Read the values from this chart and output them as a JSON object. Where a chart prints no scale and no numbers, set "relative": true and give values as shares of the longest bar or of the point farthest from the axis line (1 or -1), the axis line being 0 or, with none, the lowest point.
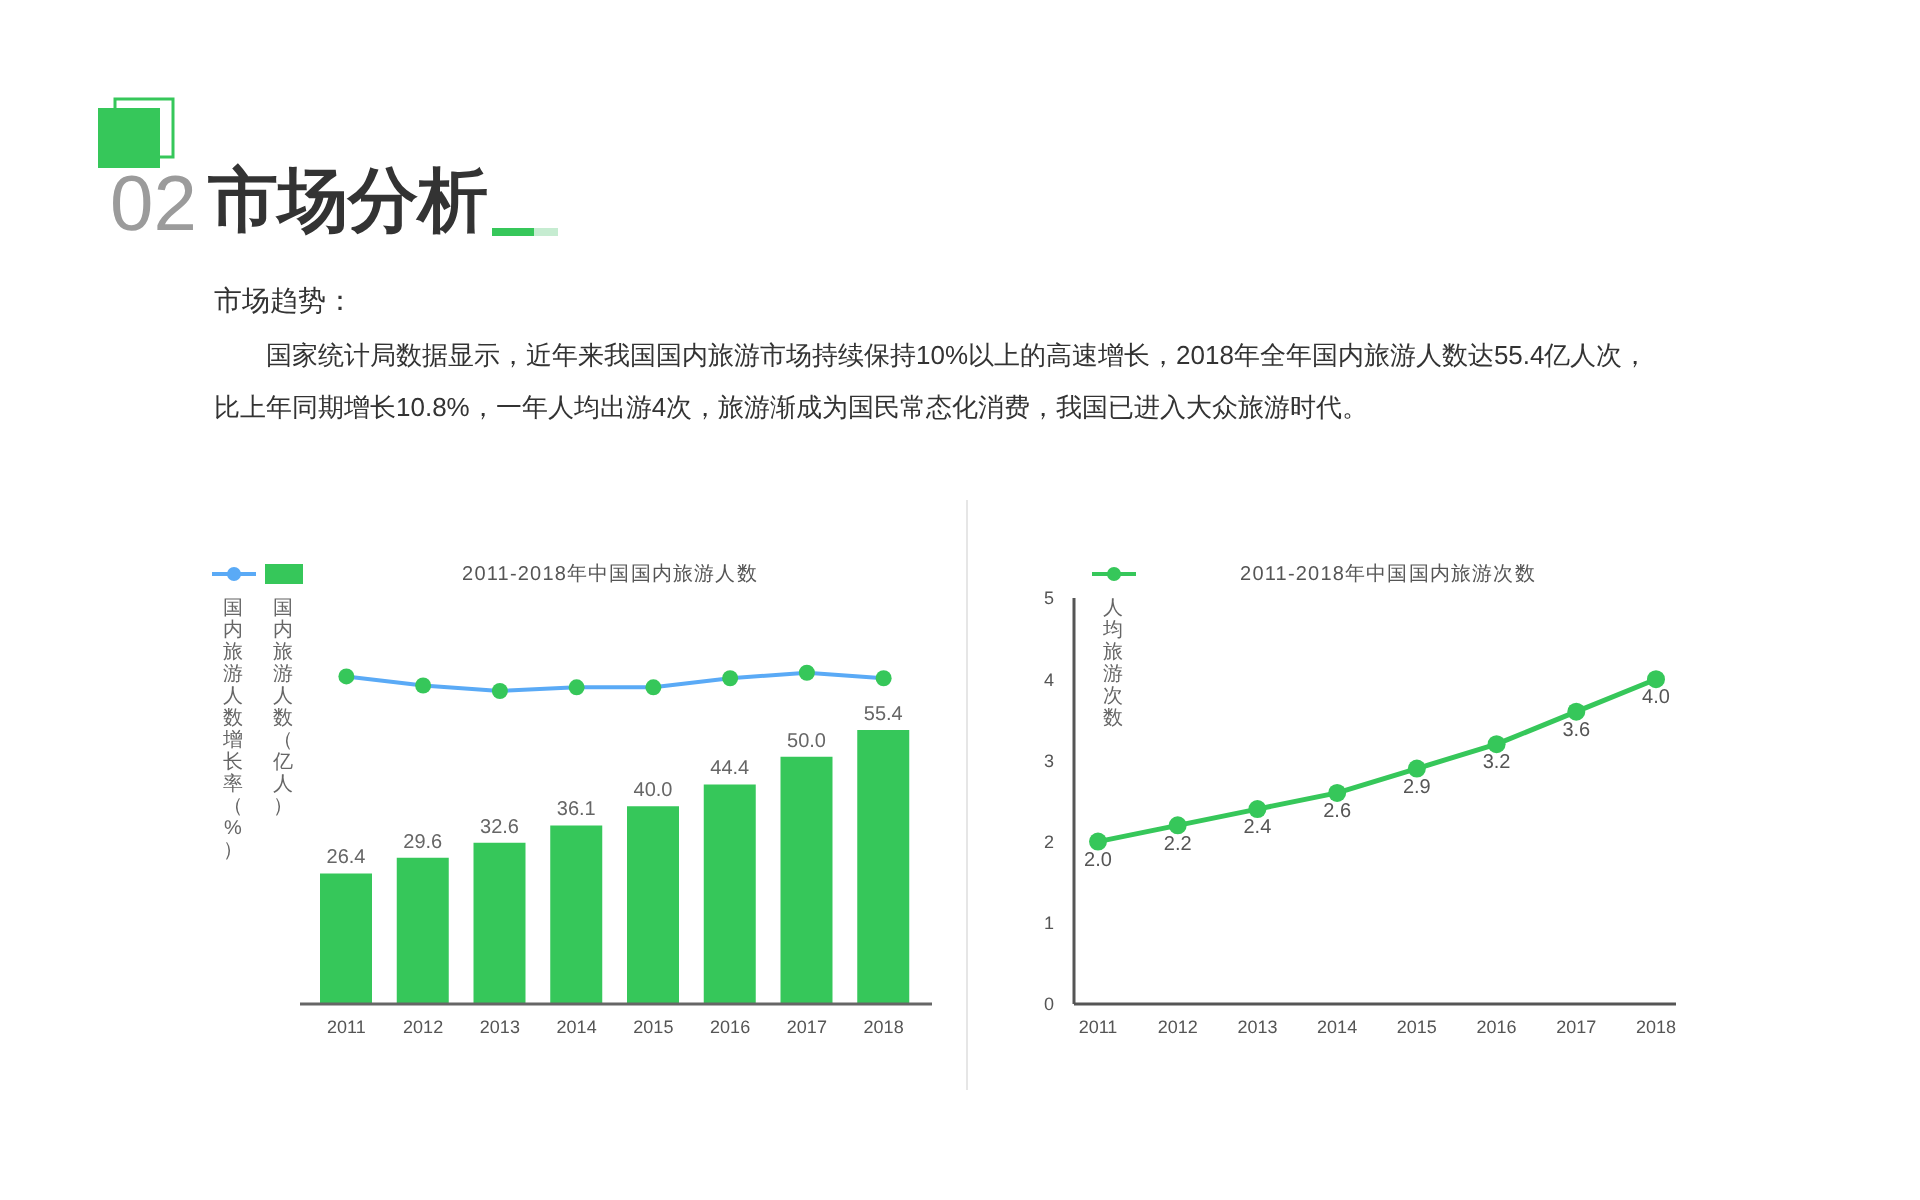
{
  "chart_data": [
    {
      "type": "other",
      "title": "市场分析",
      "annotations": [
        "02",
        "市场趋势：",
        "国家统计局数据显示，近年来我国国内旅游市场持续保持10%以上的高速增长，2018年全年国内旅游人数达55.4亿人次，比上年同期增长10.8%，一年人均出游4次，旅游渐成为国民常态化消费，我国已进入大众旅游时代。"
      ]
    },
    {
      "type": "line",
      "title": "2011-2018年中国国内旅游人数",
      "categories": [
        "2011",
        "2012",
        "2013",
        "2014",
        "2015",
        "2016",
        "2017",
        "2018"
      ],
      "series": [
        {
          "name": "国内旅游人数增长率（%）",
          "color": "#5aaaf6",
          "colors": [
            "#36c75a",
            "#36c75a",
            "#36c75a",
            "#36c75a",
            "#36c75a",
            "#36c75a",
            "#36c75a",
            "#36c75a"
          ],
          "values": [
            0.8,
            0.3,
            0,
            0.2,
            0.2,
            0.7,
            1,
            0.7
          ]
        }
      ],
      "relative": true,
      "marker": "circle",
      "legend": "top left",
      "tick_labels": false
    },
    {
      "type": "bar",
      "categories": [
        "2011",
        "2012",
        "2013",
        "2014",
        "2015",
        "2016",
        "2017",
        "2018"
      ],
      "series": [
        {
          "name": "国内旅游人数（亿人）",
          "color": "#36c75a",
          "values": [
            26.4,
            29.6,
            32.6,
            36.1,
            40.0,
            44.4,
            50.0,
            55.4
          ],
          "value_labels": [
            "26.4",
            "29.6",
            "32.6",
            "36.1",
            "40.0",
            "44.4",
            "50.0",
            "55.4"
          ]
        }
      ],
      "legend": "top left",
      "tick_labels": "x"
    },
    {
      "type": "line",
      "title": "2011-2018年中国国内旅游次数",
      "categories": [
        "2011",
        "2012",
        "2013",
        "2014",
        "2015",
        "2016",
        "2017",
        "2018"
      ],
      "series": [
        {
          "name": "人均旅游次数",
          "color": "#36c75a",
          "values": [
            2.0,
            2.2,
            2.4,
            2.6,
            2.9,
            3.2,
            3.6,
            4.0
          ],
          "value_labels": [
            "2.0",
            "2.2",
            "2.4",
            "2.6",
            "2.9",
            "3.2",
            "3.6",
            "4.0"
          ]
        }
      ],
      "ylim": [
        0,
        5
      ],
      "yticks": [
        0,
        1,
        2,
        3,
        4,
        5
      ],
      "marker": "circle",
      "legend": "top left"
    }
  ]
}
